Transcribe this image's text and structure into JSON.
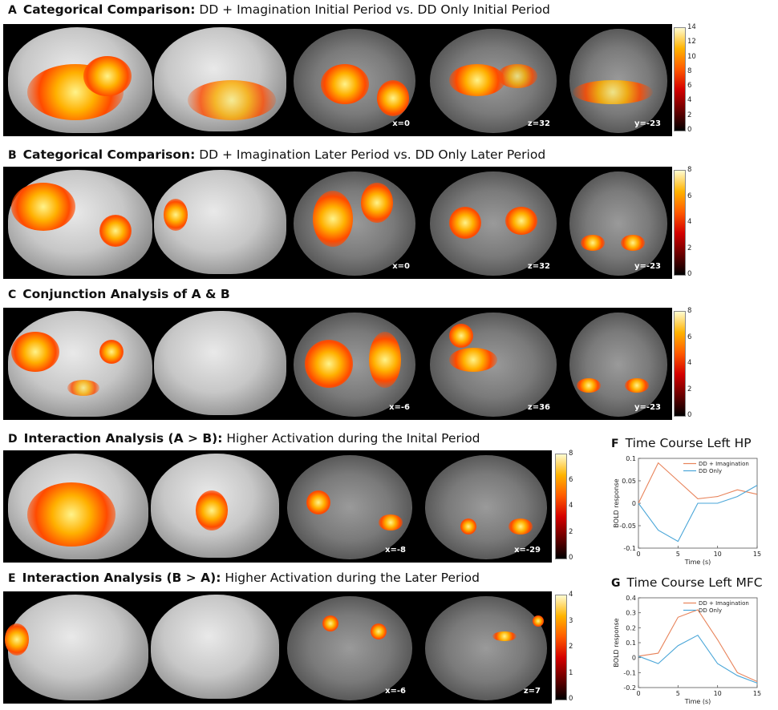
{
  "panels": [
    {
      "letter": "A",
      "bold": "Categorical Comparison:",
      "rest": " DD + Imagination Initial Period vs. DD Only Initial Period",
      "coords": [
        "x=0",
        "z=32",
        "y=-23"
      ],
      "colorbar": {
        "max": 14,
        "ticks": [
          "14",
          "12",
          "10",
          "8",
          "6",
          "4",
          "2",
          "0"
        ]
      }
    },
    {
      "letter": "B",
      "bold": "Categorical Comparison:",
      "rest": " DD + Imagination Later Period vs. DD Only Later Period",
      "coords": [
        "x=0",
        "z=32",
        "y=-23"
      ],
      "colorbar": {
        "max": 8,
        "ticks": [
          "8",
          "6",
          "4",
          "2",
          "0"
        ]
      }
    },
    {
      "letter": "C",
      "bold": "Conjunction Analysis of A & B",
      "rest": "",
      "coords": [
        "x=-6",
        "z=36",
        "y=-23"
      ],
      "colorbar": {
        "max": 8,
        "ticks": [
          "8",
          "6",
          "4",
          "2",
          "0"
        ]
      }
    },
    {
      "letter": "D",
      "bold": "Interaction Analysis (A > B):",
      "rest": " Higher Activation during the Inital Period",
      "coords": [
        "x=-8",
        "x=-29"
      ],
      "colorbar": {
        "max": 8,
        "ticks": [
          "8",
          "6",
          "4",
          "2",
          "0"
        ]
      }
    },
    {
      "letter": "E",
      "bold": "Interaction Analysis (B > A):",
      "rest": " Higher Activation during the Later Period",
      "coords": [
        "x=-6",
        "z=7"
      ],
      "colorbar": {
        "max": 4,
        "ticks": [
          "4",
          "3",
          "2",
          "1",
          "0"
        ]
      }
    }
  ],
  "chart_data": [
    {
      "type": "line",
      "panel_letter": "F",
      "title": "Time Course Left HP",
      "xlabel": "Time (s)",
      "ylabel": "BOLD response",
      "xlim": [
        0,
        15
      ],
      "ylim": [
        -0.1,
        0.1
      ],
      "xticks": [
        "0",
        "5",
        "10",
        "15"
      ],
      "yticks": [
        "0.1",
        "0.05",
        "0",
        "-0.05",
        "-0.1"
      ],
      "legend_position": "top-right",
      "colors": {
        "DD + Imagination": "#e8835a",
        "DD Only": "#4aa6d8"
      },
      "x": [
        0,
        2.5,
        5,
        7.5,
        10,
        12.5,
        15
      ],
      "series": [
        {
          "name": "DD + Imagination",
          "values": [
            0,
            0.09,
            0.05,
            0.01,
            0.015,
            0.03,
            0.02
          ]
        },
        {
          "name": "DD Only",
          "values": [
            0,
            -0.06,
            -0.085,
            0.0,
            0.0,
            0.015,
            0.04
          ]
        }
      ]
    },
    {
      "type": "line",
      "panel_letter": "G",
      "title": "Time Course Left MFC",
      "xlabel": "Time (s)",
      "ylabel": "BOLD response",
      "xlim": [
        0,
        15
      ],
      "ylim": [
        -0.2,
        0.4
      ],
      "xticks": [
        "0",
        "5",
        "10",
        "15"
      ],
      "yticks": [
        "0.4",
        "0.3",
        "0.2",
        "0.1",
        "0",
        "-0.1",
        "-0.2"
      ],
      "legend_position": "top-right",
      "colors": {
        "DD + Imagination": "#e8835a",
        "DD Only": "#4aa6d8"
      },
      "x": [
        0,
        2.5,
        5,
        7.5,
        10,
        12.5,
        15
      ],
      "series": [
        {
          "name": "DD + Imagination",
          "values": [
            0.01,
            0.03,
            0.27,
            0.32,
            0.12,
            -0.1,
            -0.16
          ]
        },
        {
          "name": "DD Only",
          "values": [
            0.01,
            -0.04,
            0.08,
            0.15,
            -0.04,
            -0.12,
            -0.17
          ]
        }
      ]
    }
  ]
}
